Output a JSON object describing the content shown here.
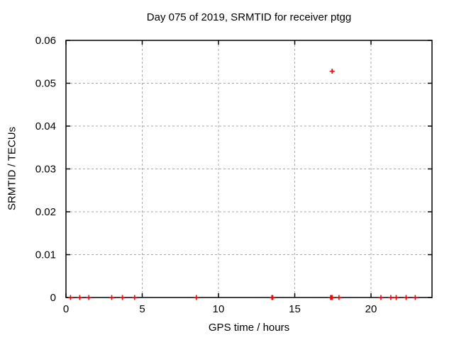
{
  "figure": {
    "background": "#ffffff"
  },
  "chart_data": {
    "type": "scatter",
    "title": "Day 075 of 2019, SRMTID for receiver ptgg",
    "xlabel": "GPS time / hours",
    "ylabel": "SRMTID / TECUs",
    "xlim": [
      0,
      24
    ],
    "ylim": [
      0,
      0.06
    ],
    "xticks": {
      "values": [
        0,
        5,
        10,
        15,
        20
      ],
      "labels": [
        "0",
        "5",
        "10",
        "15",
        "20"
      ]
    },
    "yticks": {
      "values": [
        0,
        0.01,
        0.02,
        0.03,
        0.04,
        0.05,
        0.06
      ],
      "labels": [
        "0",
        "0.01",
        "0.02",
        "0.03",
        "0.04",
        "0.05",
        "0.06"
      ]
    },
    "grid": true,
    "legend": false,
    "colors": {
      "axis": "#000000",
      "grid": "#a8a8a8",
      "text": "#000000",
      "marker": "#ff0000"
    },
    "marker_style": {
      "shape": "plus",
      "size": 7
    },
    "series": [
      {
        "name": "SRMTID",
        "color": "#ff0000",
        "points": [
          [
            0.3,
            0
          ],
          [
            0.9,
            0
          ],
          [
            1.5,
            0
          ],
          [
            3.0,
            0
          ],
          [
            3.7,
            0
          ],
          [
            4.5,
            0
          ],
          [
            8.55,
            0
          ],
          [
            13.5,
            0
          ],
          [
            13.55,
            0
          ],
          [
            17.35,
            0
          ],
          [
            17.4,
            0
          ],
          [
            17.45,
            0
          ],
          [
            17.9,
            0
          ],
          [
            20.65,
            0
          ],
          [
            21.3,
            0
          ],
          [
            21.65,
            0
          ],
          [
            22.3,
            0
          ],
          [
            22.9,
            0
          ],
          [
            17.45,
            0.0528
          ]
        ]
      }
    ]
  }
}
